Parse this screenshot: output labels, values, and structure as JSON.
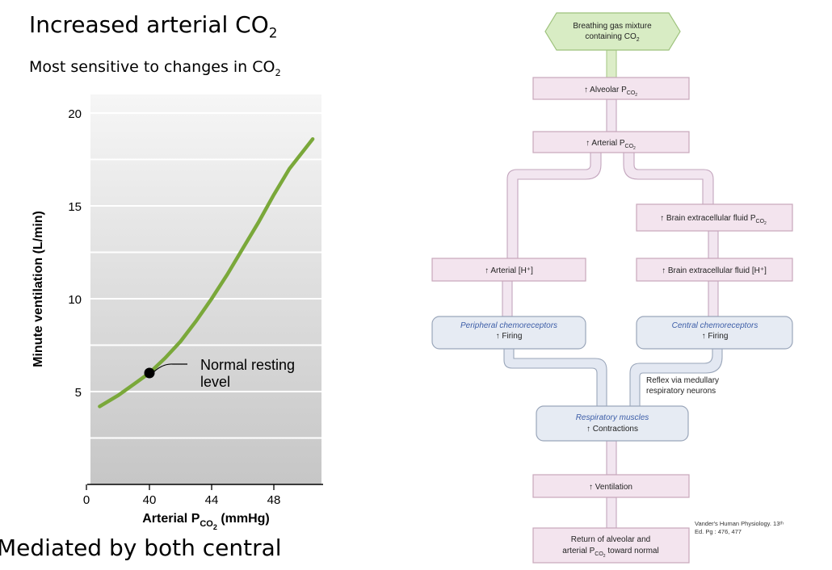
{
  "header": {
    "title_main": "Increased arterial CO",
    "title_sub": "2",
    "subtitle_main": "Most sensitive to changes in CO",
    "subtitle_sub": "2"
  },
  "footer_text": "Mediated by both central",
  "chart_data": {
    "type": "line",
    "ylabel": "Minute ventilation (L/min)",
    "xlabel_main": "Arterial P",
    "xlabel_sub": "CO",
    "xlabel_sub2": "2",
    "xlabel_unit": " (mmHg)",
    "x_ticks": [
      "0",
      "40",
      "44",
      "48"
    ],
    "y_ticks": [
      "5",
      "10",
      "15",
      "20"
    ],
    "ylim": [
      0,
      21
    ],
    "series": [
      {
        "x": [
          36.8,
          38,
          39,
          40,
          41,
          42,
          43,
          44,
          45,
          46,
          47,
          48,
          49,
          50.5
        ],
        "y": [
          4.2,
          4.8,
          5.4,
          6.0,
          6.8,
          7.7,
          8.8,
          10.0,
          11.3,
          12.7,
          14.1,
          15.6,
          17.0,
          18.6
        ]
      }
    ],
    "point": {
      "x": 40,
      "y": 6.0
    },
    "annotation_line1": "Normal resting",
    "annotation_line2": "level",
    "colors": {
      "curve": "#7aa83a",
      "background_top": "#f4f4f4",
      "background_bottom": "#c9c9c9"
    }
  },
  "flowchart": {
    "gas_mixture_line1": "Breathing gas mixture",
    "gas_mixture_line2": "containing CO",
    "alveolar": "↑ Alveolar P",
    "arterial_pco2": "↑ Arterial P",
    "brain_ecf_pco2": "↑ Brain extracellular fluid P",
    "arterial_h": "↑ Arterial [H⁺]",
    "brain_ecf_h": "↑ Brain extracellular fluid [H⁺]",
    "peripheral_title": "Peripheral chemoreceptors",
    "peripheral_sub": "↑ Firing",
    "central_title": "Central chemoreceptors",
    "central_sub": "↑ Firing",
    "reflex_line1": "Reflex via medullary",
    "reflex_line2": "respiratory neurons",
    "resp_muscles_title": "Respiratory muscles",
    "resp_muscles_sub": "↑ Contractions",
    "ventilation": "↑ Ventilation",
    "return_line1": "Return of alveolar and",
    "return_line2": "arterial P",
    "return_line2_tail": " toward normal",
    "co2_sub": "CO",
    "co2_sub2": "2",
    "colors": {
      "pink_box": "#f3e4ee",
      "blue_box": "#e6ebf3",
      "green_box": "#d8ecc4",
      "italic_blue": "#3d5ea8"
    }
  },
  "citation_line1": "Vander's Human Physiology. 13ᵗʰ",
  "citation_line2": "Ed. Pg : 476, 477"
}
